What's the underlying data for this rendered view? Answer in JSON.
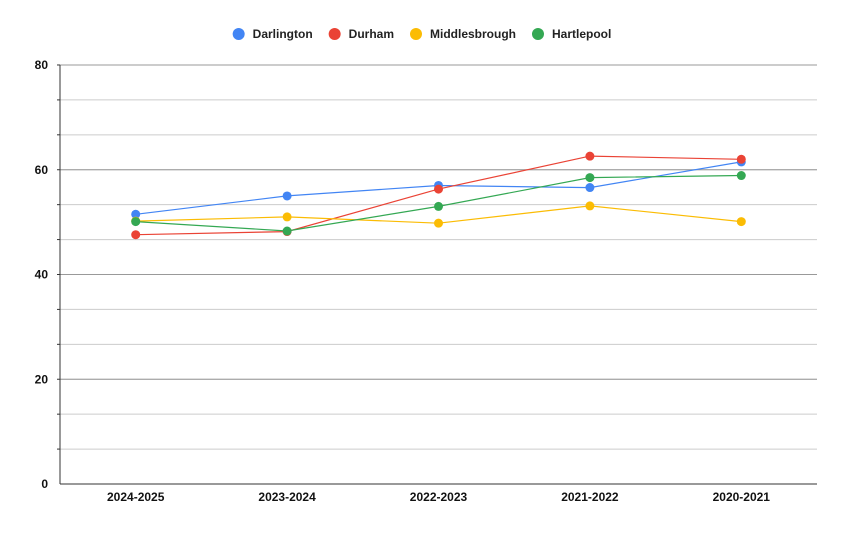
{
  "chart_data": {
    "type": "line",
    "categories": [
      "2024-2025",
      "2023-2024",
      "2022-2023",
      "2021-2022",
      "2020-2021"
    ],
    "series": [
      {
        "name": "Darlington",
        "color": "#4285f4",
        "values": [
          51.5,
          55.0,
          57.0,
          56.6,
          61.5
        ]
      },
      {
        "name": "Durham",
        "color": "#ea4335",
        "values": [
          47.6,
          48.2,
          56.3,
          62.6,
          62.0
        ]
      },
      {
        "name": "Middlesbrough",
        "color": "#fbbc04",
        "values": [
          50.2,
          51.0,
          49.8,
          53.1,
          50.1
        ]
      },
      {
        "name": "Hartlepool",
        "color": "#34a853",
        "values": [
          50.1,
          48.3,
          53.0,
          58.5,
          58.9
        ]
      }
    ],
    "ylim": [
      0,
      80
    ],
    "y_major_ticks": [
      0,
      20,
      40,
      60,
      80
    ],
    "y_minor_step": 6.667,
    "legend_position": "top",
    "grid": true
  }
}
